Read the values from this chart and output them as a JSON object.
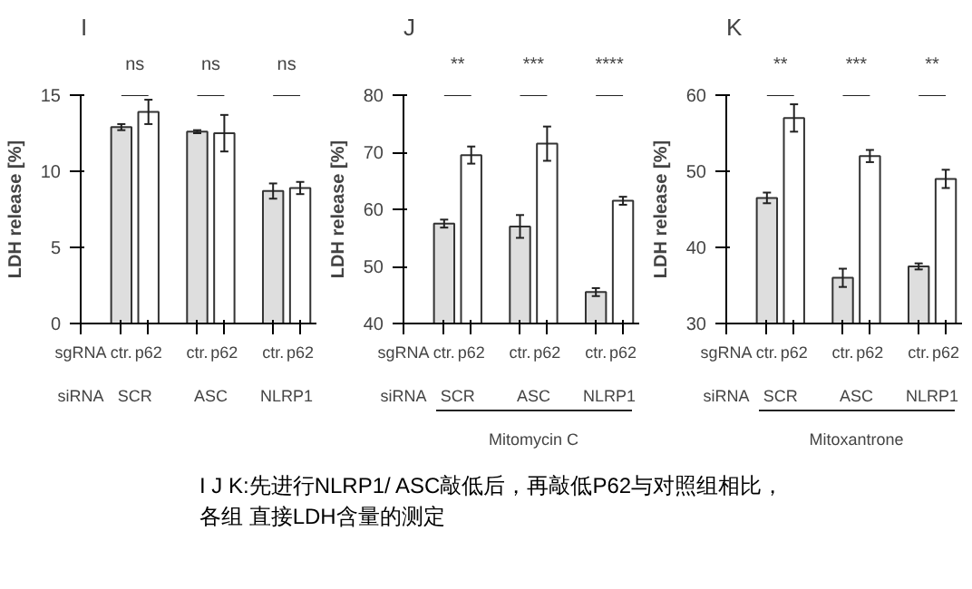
{
  "chart_data": [
    {
      "type": "bar",
      "title": "I",
      "ylabel": "LDH release [%]",
      "categories": [
        "ctr.",
        "p62",
        "ctr.",
        "p62",
        "ctr.",
        "p62"
      ],
      "values": [
        12.9,
        13.9,
        12.6,
        12.5,
        8.7,
        8.9
      ],
      "errors": [
        0.2,
        0.8,
        0.1,
        1.2,
        0.5,
        0.4
      ],
      "colors": [
        "#dedede",
        "#ffffff",
        "#dedede",
        "#ffffff",
        "#dedede",
        "#ffffff"
      ],
      "ylim": [
        0,
        15
      ],
      "yticks": [
        0,
        5,
        10,
        15
      ],
      "annotations": [
        "ns",
        "ns",
        "ns",
        "sgRNA",
        "siRNA",
        "SCR",
        "ASC",
        "NLRP1"
      ]
    },
    {
      "type": "bar",
      "title": "J",
      "ylabel": "LDH release [%]",
      "categories": [
        "ctr.",
        "p62",
        "ctr.",
        "p62",
        "ctr.",
        "p62"
      ],
      "values": [
        57.5,
        69.5,
        57,
        71.5,
        45.5,
        61.5
      ],
      "errors": [
        0.7,
        1.5,
        2,
        3,
        0.7,
        0.7
      ],
      "colors": [
        "#dedede",
        "#ffffff",
        "#dedede",
        "#ffffff",
        "#dedede",
        "#ffffff"
      ],
      "ylim": [
        40,
        80
      ],
      "yticks": [
        40,
        50,
        60,
        70,
        80
      ],
      "annotations": [
        "**",
        "***",
        "****",
        "sgRNA",
        "siRNA",
        "SCR",
        "ASC",
        "NLRP1",
        "Mitomycin C"
      ]
    },
    {
      "type": "bar",
      "title": "K",
      "ylabel": "LDH release [%]",
      "categories": [
        "ctr.",
        "p62",
        "ctr.",
        "p62",
        "ctr.",
        "p62"
      ],
      "values": [
        46.5,
        57,
        36,
        52,
        37.5,
        49
      ],
      "errors": [
        0.7,
        1.8,
        1.2,
        0.8,
        0.4,
        1.2
      ],
      "colors": [
        "#dedede",
        "#ffffff",
        "#dedede",
        "#ffffff",
        "#dedede",
        "#ffffff"
      ],
      "ylim": [
        30,
        60
      ],
      "yticks": [
        30,
        40,
        50,
        60
      ],
      "annotations": [
        "**",
        "***",
        "**",
        "sgRNA",
        "siRNA",
        "SCR",
        "ASC",
        "NLRP1",
        "Mitoxantrone"
      ]
    },
    {
      "type": "other",
      "annotations": [
        "I J K:先进行NLRP1/ ASC敲低后，再敲低P62与对照组相比，各组 直接LDH含量的测定"
      ]
    }
  ]
}
